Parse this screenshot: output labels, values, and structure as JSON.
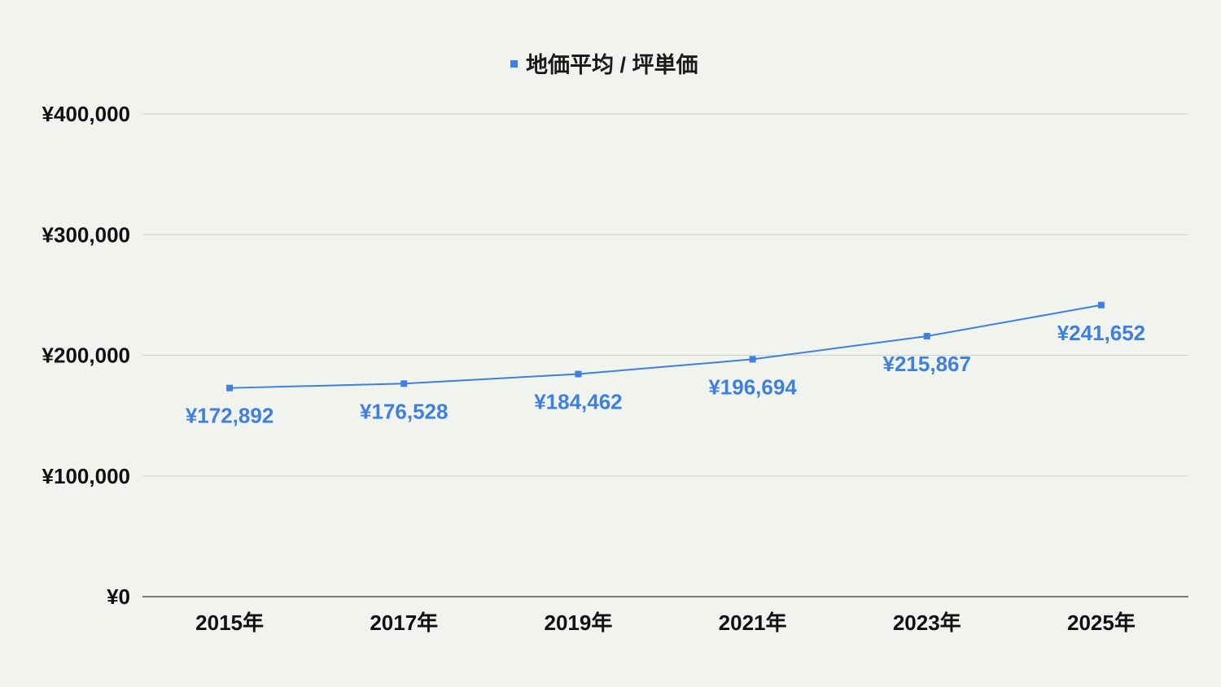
{
  "chart_data": {
    "type": "line",
    "title": "",
    "xlabel": "",
    "ylabel": "",
    "categories": [
      "2015年",
      "2017年",
      "2019年",
      "2021年",
      "2023年",
      "2025年"
    ],
    "series": [
      {
        "name": "地価平均 / 坪単価",
        "values": [
          172892,
          176528,
          184462,
          196694,
          215867,
          241652
        ],
        "labels": [
          "¥172,892",
          "¥176,528",
          "¥184,462",
          "¥196,694",
          "¥215,867",
          "¥241,652"
        ],
        "color": "#3f7fe0"
      }
    ],
    "ylim": [
      0,
      400000
    ],
    "yticks": [
      {
        "value": 0,
        "label": "¥0"
      },
      {
        "value": 100000,
        "label": "¥100,000"
      },
      {
        "value": 200000,
        "label": "¥200,000"
      },
      {
        "value": 300000,
        "label": "¥300,000"
      },
      {
        "value": 400000,
        "label": "¥400,000"
      }
    ],
    "grid": true,
    "legend_position": "top-center",
    "colors": {
      "background": "#f1f4ee",
      "gridline": "#cfd2cc",
      "axis": "#333333",
      "text": "#111111"
    }
  }
}
